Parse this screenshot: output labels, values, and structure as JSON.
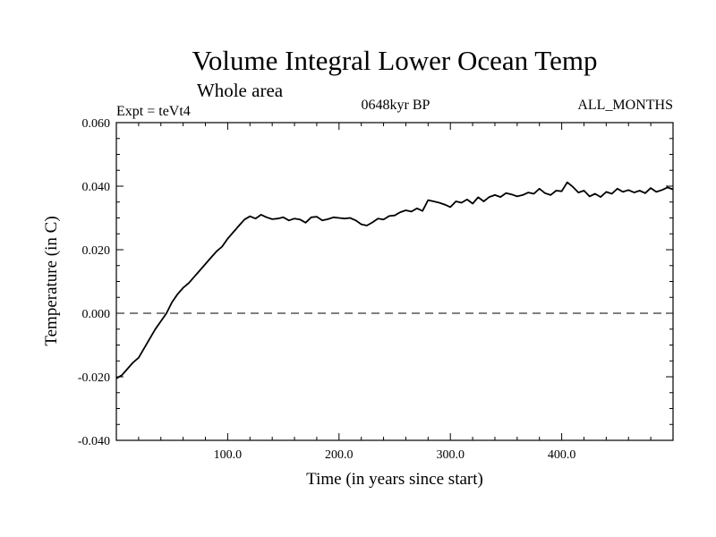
{
  "chart_data": {
    "type": "line",
    "title": "Volume Integral Lower Ocean Temp",
    "subtitle": "Whole area",
    "expt_label": "Expt = teVt4",
    "period_label": "0648kyr BP",
    "months_label": "ALL_MONTHS",
    "xlabel": "Time (in years since start)",
    "ylabel": "Temperature (in C)",
    "xlim": [
      0,
      500
    ],
    "ylim": [
      -0.04,
      0.06
    ],
    "x_ticks": [
      100,
      200,
      300,
      400
    ],
    "x_tick_labels": [
      "100.0",
      "200.0",
      "300.0",
      "400.0"
    ],
    "y_ticks": [
      -0.04,
      -0.02,
      0.0,
      0.02,
      0.04,
      0.06
    ],
    "y_tick_labels": [
      "-0.040",
      "-0.020",
      "0.000",
      "0.020",
      "0.040",
      "0.060"
    ],
    "reference_line": 0.0,
    "grid": false,
    "series": [
      {
        "color": "#000000",
        "x": [
          0,
          5,
          10,
          15,
          20,
          25,
          30,
          35,
          40,
          45,
          50,
          55,
          60,
          65,
          70,
          75,
          80,
          85,
          90,
          95,
          100,
          105,
          110,
          115,
          120,
          125,
          130,
          135,
          140,
          145,
          150,
          155,
          160,
          165,
          170,
          175,
          180,
          185,
          190,
          195,
          200,
          205,
          210,
          215,
          220,
          225,
          230,
          235,
          240,
          245,
          250,
          255,
          260,
          265,
          270,
          275,
          280,
          285,
          290,
          295,
          300,
          305,
          310,
          315,
          320,
          325,
          330,
          335,
          340,
          345,
          350,
          355,
          360,
          365,
          370,
          375,
          380,
          385,
          390,
          395,
          400,
          405,
          410,
          415,
          420,
          425,
          430,
          435,
          440,
          445,
          450,
          455,
          460,
          465,
          470,
          475,
          480,
          485,
          490,
          495,
          500
        ],
        "y": [
          -0.0205,
          -0.0195,
          -0.0175,
          -0.0155,
          -0.014,
          -0.011,
          -0.008,
          -0.005,
          -0.0025,
          0.0,
          0.0035,
          0.006,
          0.008,
          0.0095,
          0.0115,
          0.0135,
          0.0155,
          0.0175,
          0.0195,
          0.021,
          0.0235,
          0.0255,
          0.0275,
          0.0295,
          0.0305,
          0.0298,
          0.031,
          0.0302,
          0.0296,
          0.0298,
          0.0302,
          0.0292,
          0.0298,
          0.0295,
          0.0285,
          0.0302,
          0.0304,
          0.0292,
          0.0296,
          0.0302,
          0.03,
          0.0298,
          0.03,
          0.0292,
          0.028,
          0.0276,
          0.0286,
          0.0298,
          0.0295,
          0.0306,
          0.0308,
          0.0318,
          0.0324,
          0.032,
          0.033,
          0.0322,
          0.0356,
          0.0352,
          0.0348,
          0.0342,
          0.0334,
          0.0352,
          0.0348,
          0.0358,
          0.0345,
          0.0365,
          0.0352,
          0.0366,
          0.0372,
          0.0366,
          0.0378,
          0.0374,
          0.0368,
          0.0372,
          0.038,
          0.0376,
          0.0392,
          0.0378,
          0.0372,
          0.0386,
          0.0384,
          0.0412,
          0.0398,
          0.038,
          0.0386,
          0.0368,
          0.0376,
          0.0366,
          0.0382,
          0.0376,
          0.0392,
          0.0382,
          0.0388,
          0.038,
          0.0386,
          0.0378,
          0.0394,
          0.0382,
          0.0388,
          0.0396,
          0.039
        ]
      }
    ]
  }
}
